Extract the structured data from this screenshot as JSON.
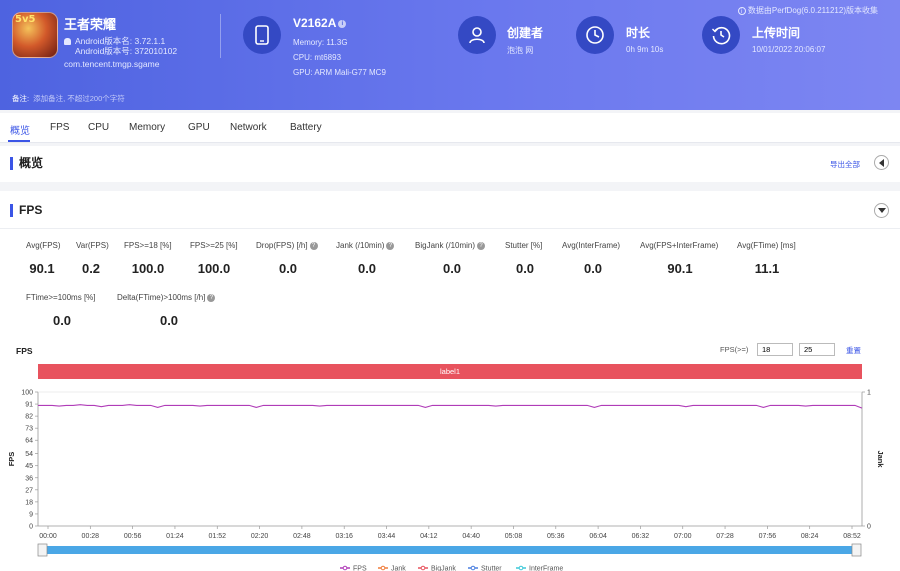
{
  "app": {
    "name": "王者荣耀",
    "icon_tag": "5v5",
    "version_name": "Android版本名: 3.72.1.1",
    "version_code": "Android版本号: 372010102",
    "package": "com.tencent.tmgp.sgame"
  },
  "device": {
    "model": "V2162A",
    "memory": "Memory: 11.3G",
    "cpu": "CPU: mt6893",
    "gpu": "GPU: ARM Mali-G77 MC9"
  },
  "creator": {
    "title": "创建者",
    "value": "泡泡 网"
  },
  "duration": {
    "title": "时长",
    "value": "0h 9m 10s"
  },
  "upload": {
    "title": "上传时间",
    "value": "10/01/2022 20:06:07"
  },
  "perf_note": "数据由PerfDog(6.0.211212)版本收集",
  "remark": {
    "label": "备注:",
    "placeholder": "添加备注, 不超过200个字符"
  },
  "tabs": [
    "概览",
    "FPS",
    "CPU",
    "Memory",
    "GPU",
    "Network",
    "Battery"
  ],
  "overview": {
    "title": "概览",
    "export": "导出全部"
  },
  "fps_section": {
    "title": "FPS",
    "metrics": [
      {
        "label": "Avg(FPS)",
        "value": "90.1"
      },
      {
        "label": "Var(FPS)",
        "value": "0.2"
      },
      {
        "label": "FPS>=18 [%]",
        "value": "100.0"
      },
      {
        "label": "FPS>=25 [%]",
        "value": "100.0"
      },
      {
        "label": "Drop(FPS) [/h]",
        "value": "0.0"
      },
      {
        "label": "Jank (/10min)",
        "value": "0.0"
      },
      {
        "label": "BigJank (/10min)",
        "value": "0.0"
      },
      {
        "label": "Stutter [%]",
        "value": "0.0"
      },
      {
        "label": "Avg(InterFrame)",
        "value": "0.0"
      },
      {
        "label": "Avg(FPS+InterFrame)",
        "value": "90.1"
      },
      {
        "label": "Avg(FTime) [ms]",
        "value": "11.1"
      },
      {
        "label": "FTime>=100ms [%]",
        "value": "0.0"
      },
      {
        "label": "Delta(FTime)>100ms [/h]",
        "value": "0.0"
      }
    ],
    "filter_label": "FPS(>=)",
    "filter_values": [
      "18",
      "25"
    ],
    "reset": "重置",
    "label_bar": "label1"
  },
  "chart_data": {
    "type": "line",
    "title": "FPS",
    "ylabel": "FPS",
    "y2label": "Jank",
    "ylim": [
      0,
      100
    ],
    "y2lim": [
      0,
      1
    ],
    "y_ticks": [
      0,
      9,
      18,
      27,
      36,
      45,
      54,
      64,
      73,
      82,
      91,
      100
    ],
    "y2_ticks": [
      0,
      1
    ],
    "x_ticks": [
      "00:00",
      "00:28",
      "00:56",
      "01:24",
      "01:52",
      "02:20",
      "02:48",
      "03:16",
      "03:44",
      "04:12",
      "04:40",
      "05:08",
      "05:36",
      "06:04",
      "06:32",
      "07:00",
      "07:28",
      "07:56",
      "08:24",
      "08:52"
    ],
    "series": [
      {
        "name": "FPS",
        "color": "#b03cb8",
        "values_summary": "approximately 90 throughout, dips to ~88"
      },
      {
        "name": "Jank",
        "color": "#f07c3a"
      },
      {
        "name": "BigJank",
        "color": "#e8535e"
      },
      {
        "name": "Stutter",
        "color": "#4a7fe0"
      },
      {
        "name": "InterFrame",
        "color": "#3cc8d8"
      }
    ],
    "fps_values": [
      90,
      90,
      90,
      89.5,
      90,
      90,
      90.5,
      90,
      90,
      89,
      90,
      90,
      90,
      90.5,
      90,
      90,
      90,
      88.5,
      90,
      90,
      90,
      90,
      90,
      89.5,
      90,
      90,
      90,
      90,
      90,
      90,
      90,
      88.5,
      90,
      90,
      90,
      90,
      90,
      90,
      90,
      90,
      89.5,
      90,
      90,
      90,
      90,
      90,
      90,
      90,
      90,
      90,
      90,
      90,
      90,
      90,
      90,
      88.5,
      90,
      90,
      90,
      90,
      90,
      90,
      90,
      90,
      90,
      89.5,
      90,
      90,
      90,
      90,
      90,
      90,
      90,
      90,
      90,
      90,
      90,
      90,
      90,
      88.5,
      90,
      90,
      90,
      90,
      90,
      90,
      90,
      90,
      90,
      90,
      90,
      90,
      89,
      90,
      90,
      90,
      90,
      90,
      90,
      90,
      90,
      90,
      90,
      88.5,
      90,
      90,
      90,
      90,
      90,
      89.5,
      90,
      90,
      90,
      90,
      90,
      90,
      90,
      88
    ]
  },
  "colors": {
    "accent": "#3b55e6",
    "header_start": "#4e63e0",
    "header_end": "#7d86f2",
    "label_bar": "#e8535e",
    "fps_line": "#b03cb8"
  }
}
